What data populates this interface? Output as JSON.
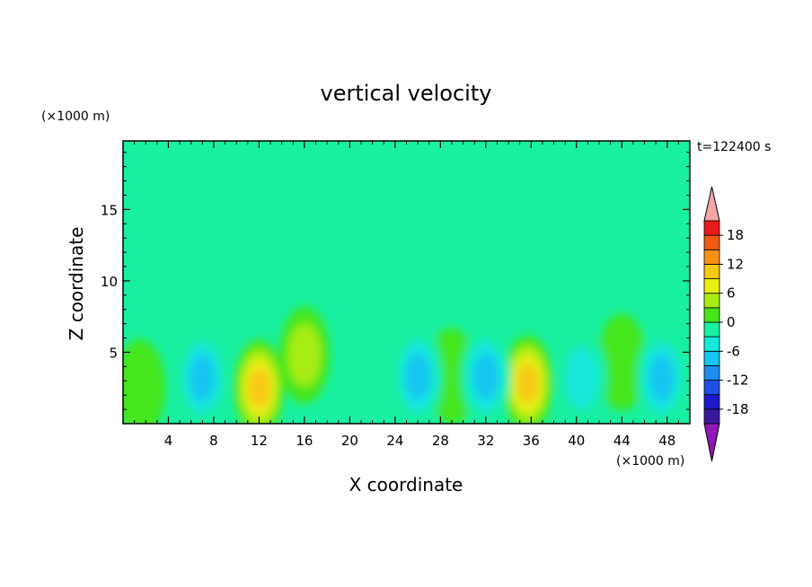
{
  "chart_data": {
    "type": "heatmap",
    "title": "vertical velocity",
    "xlabel": "X coordinate",
    "ylabel": "Z coordinate",
    "x_unit": "(×1000 m)",
    "z_unit": "(×1000 m)",
    "time_label": "t=122400 s",
    "xlim": [
      0,
      50
    ],
    "zlim": [
      0,
      19.8
    ],
    "x_ticks": [
      4,
      8,
      12,
      16,
      20,
      24,
      28,
      32,
      36,
      40,
      44,
      48
    ],
    "z_ticks": [
      5,
      10,
      15
    ],
    "colorbar": {
      "ticks": [
        18,
        12,
        6,
        0,
        -6,
        -12,
        -18
      ],
      "levels": [
        -21,
        -18,
        -15,
        -12,
        -9,
        -6,
        -3,
        0,
        3,
        6,
        9,
        12,
        15,
        18,
        21
      ],
      "colors": [
        "#6a1fa8",
        "#3a189e",
        "#1a1ac9",
        "#1f4fe6",
        "#1e8cf0",
        "#16c6f0",
        "#18e8dc",
        "#19f0a0",
        "#45e61a",
        "#a8ec14",
        "#e8f014",
        "#f8c814",
        "#f89014",
        "#f05a14",
        "#e81a1a",
        "#f4a6a6"
      ],
      "under_color": "#8e18b8",
      "over_color": "#f4a6a6"
    },
    "features": [
      {
        "kind": "updraft",
        "x": 12,
        "z": 2.5,
        "peak": 13
      },
      {
        "kind": "updraft",
        "x": 16,
        "z": 4.8,
        "peak": 8
      },
      {
        "kind": "updraft",
        "x": 35.7,
        "z": 2.8,
        "peak": 14
      },
      {
        "kind": "updraft",
        "x": 29,
        "z": 3.3,
        "peak": 5
      },
      {
        "kind": "updraft",
        "x": 1.5,
        "z": 2.5,
        "peak": 4
      },
      {
        "kind": "updraft",
        "x": 44,
        "z": 4.3,
        "peak": 4
      },
      {
        "kind": "downdraft",
        "x": 7,
        "z": 3.2,
        "peak": -11
      },
      {
        "kind": "downdraft",
        "x": 26,
        "z": 3.3,
        "peak": -10
      },
      {
        "kind": "downdraft",
        "x": 32,
        "z": 3.3,
        "peak": -11
      },
      {
        "kind": "downdraft",
        "x": 40.5,
        "z": 3.2,
        "peak": -8
      },
      {
        "kind": "downdraft",
        "x": 47.5,
        "z": 3.2,
        "peak": -9
      }
    ]
  }
}
